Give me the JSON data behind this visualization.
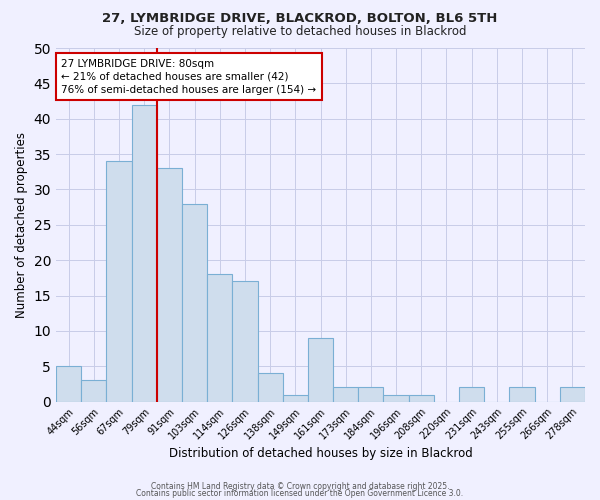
{
  "title1": "27, LYMBRIDGE DRIVE, BLACKROD, BOLTON, BL6 5TH",
  "title2": "Size of property relative to detached houses in Blackrod",
  "xlabel": "Distribution of detached houses by size in Blackrod",
  "ylabel": "Number of detached properties",
  "categories": [
    "44sqm",
    "56sqm",
    "67sqm",
    "79sqm",
    "91sqm",
    "103sqm",
    "114sqm",
    "126sqm",
    "138sqm",
    "149sqm",
    "161sqm",
    "173sqm",
    "184sqm",
    "196sqm",
    "208sqm",
    "220sqm",
    "231sqm",
    "243sqm",
    "255sqm",
    "266sqm",
    "278sqm"
  ],
  "values": [
    5,
    3,
    34,
    42,
    33,
    28,
    18,
    17,
    4,
    1,
    9,
    2,
    2,
    1,
    1,
    0,
    2,
    0,
    2,
    0,
    2
  ],
  "bar_color": "#cfdded",
  "bar_edge_color": "#7aafd4",
  "vline_x_index": 3,
  "vline_color": "#cc0000",
  "annotation_text": "27 LYMBRIDGE DRIVE: 80sqm\n← 21% of detached houses are smaller (42)\n76% of semi-detached houses are larger (154) →",
  "annotation_box_color": "#ffffff",
  "annotation_box_edge": "#cc0000",
  "ylim": [
    0,
    50
  ],
  "yticks": [
    0,
    5,
    10,
    15,
    20,
    25,
    30,
    35,
    40,
    45,
    50
  ],
  "footer1": "Contains HM Land Registry data © Crown copyright and database right 2025.",
  "footer2": "Contains public sector information licensed under the Open Government Licence 3.0.",
  "background_color": "#f0f0ff",
  "grid_color": "#c8cce8",
  "title1_fontsize": 9.5,
  "title2_fontsize": 8.5
}
